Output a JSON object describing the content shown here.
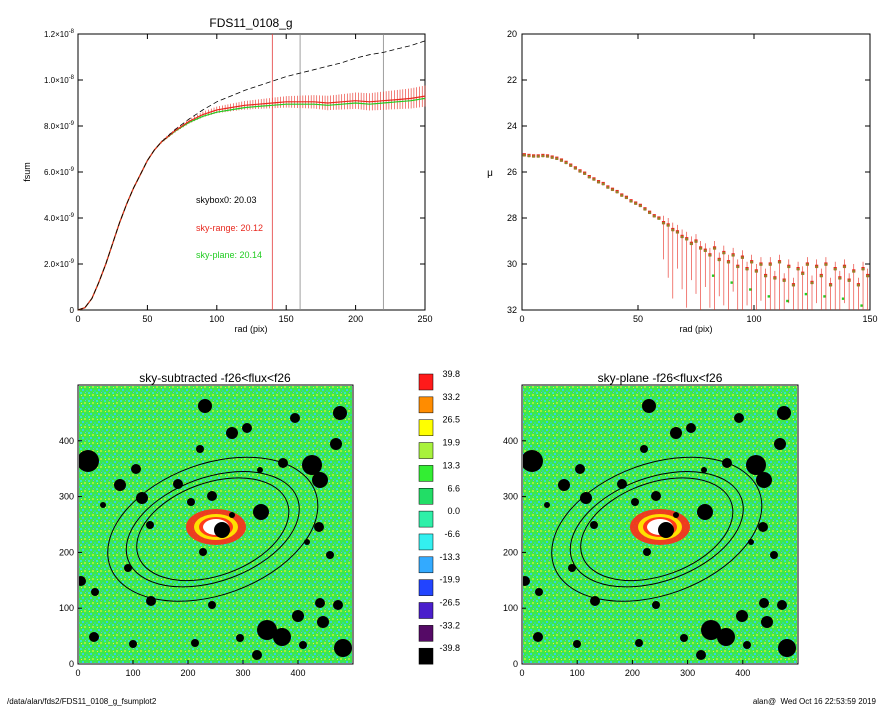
{
  "chart_data": [
    {
      "type": "line",
      "title": "FDS11_0108_g",
      "xlabel": "rad (pix)",
      "ylabel": "fsum",
      "xlim": [
        0,
        250
      ],
      "ylim": [
        0,
        1.2e-08
      ],
      "xticks": [
        "0",
        "50",
        "100",
        "150",
        "200",
        "250"
      ],
      "yticks": [
        {
          "mant": "0",
          "exp": ""
        },
        {
          "mant": "2.0×10",
          "exp": "-9"
        },
        {
          "mant": "4.0×10",
          "exp": "-9"
        },
        {
          "mant": "6.0×10",
          "exp": "-9"
        },
        {
          "mant": "8.0×10",
          "exp": "-9"
        },
        {
          "mant": "1.0×10",
          "exp": "-8"
        },
        {
          "mant": "1.2×10",
          "exp": "-8"
        }
      ],
      "vlines": [
        {
          "x": 140,
          "color": "#e33c3c"
        },
        {
          "x": 160,
          "color": "#888888"
        },
        {
          "x": 220,
          "color": "#888888"
        }
      ],
      "annotations": [
        {
          "text": "skybox0: 20.03",
          "color": "#000000"
        },
        {
          "text": "sky-range: 20.12",
          "color": "#e8281e"
        },
        {
          "text": "sky-plane: 20.14",
          "color": "#22cc22"
        }
      ],
      "series": [
        {
          "style": "dashed",
          "color": "#000000",
          "x": [
            0,
            5,
            10,
            15,
            20,
            25,
            30,
            35,
            40,
            45,
            50,
            55,
            60,
            70,
            80,
            90,
            100,
            110,
            120,
            130,
            140,
            150,
            160,
            170,
            180,
            190,
            200,
            210,
            220,
            230,
            240,
            250
          ],
          "y": [
            0,
            1e-10,
            5e-10,
            1.2e-09,
            2e-09,
            2.9e-09,
            3.8e-09,
            4.6e-09,
            5.3e-09,
            5.9e-09,
            6.5e-09,
            6.95e-09,
            7.3e-09,
            7.85e-09,
            8.3e-09,
            8.7e-09,
            9.05e-09,
            9.3e-09,
            9.55e-09,
            9.75e-09,
            9.95e-09,
            1.015e-08,
            1.03e-08,
            1.045e-08,
            1.06e-08,
            1.075e-08,
            1.095e-08,
            1.11e-08,
            1.12e-08,
            1.135e-08,
            1.15e-08,
            1.17e-08
          ]
        },
        {
          "style": "solid",
          "color": "#e8281e",
          "x": [
            0,
            5,
            10,
            15,
            20,
            25,
            30,
            35,
            40,
            45,
            50,
            55,
            60,
            70,
            80,
            90,
            100,
            110,
            120,
            130,
            140,
            150,
            160,
            170,
            180,
            190,
            200,
            210,
            220,
            230,
            240,
            250
          ],
          "y": [
            0,
            1e-10,
            5e-10,
            1.2e-09,
            2e-09,
            2.9e-09,
            3.8e-09,
            4.6e-09,
            5.3e-09,
            5.9e-09,
            6.5e-09,
            6.95e-09,
            7.3e-09,
            7.8e-09,
            8.2e-09,
            8.5e-09,
            8.7e-09,
            8.8e-09,
            8.9e-09,
            8.95e-09,
            9e-09,
            9.05e-09,
            9.05e-09,
            9.05e-09,
            9e-09,
            9.05e-09,
            9.1e-09,
            9.05e-09,
            9.1e-09,
            9.15e-09,
            9.2e-09,
            9.3e-09
          ]
        },
        {
          "style": "solid",
          "color": "#22cc22",
          "x": [
            0,
            5,
            10,
            15,
            20,
            25,
            30,
            35,
            40,
            45,
            50,
            55,
            60,
            70,
            80,
            90,
            100,
            110,
            120,
            130,
            140,
            150,
            160,
            170,
            180,
            190,
            200,
            210,
            220,
            230,
            240,
            250
          ],
          "y": [
            0,
            1e-10,
            5e-10,
            1.2e-09,
            2e-09,
            2.9e-09,
            3.8e-09,
            4.6e-09,
            5.3e-09,
            5.9e-09,
            6.5e-09,
            6.95e-09,
            7.3e-09,
            7.78e-09,
            8.15e-09,
            8.42e-09,
            8.6e-09,
            8.7e-09,
            8.8e-09,
            8.85e-09,
            8.9e-09,
            8.95e-09,
            8.95e-09,
            8.95e-09,
            8.9e-09,
            8.95e-09,
            9e-09,
            8.95e-09,
            9e-09,
            9.05e-09,
            9.1e-09,
            9.2e-09
          ]
        }
      ]
    },
    {
      "type": "scatter",
      "title": "",
      "xlabel": "rad (pix)",
      "ylabel": "μ",
      "xlim": [
        0,
        150
      ],
      "ylim": [
        32,
        20
      ],
      "xticks": [
        "0",
        "50",
        "100",
        "150"
      ],
      "yticks": [
        "20",
        "22",
        "24",
        "26",
        "28",
        "30",
        "32"
      ],
      "profile_points": [
        [
          1,
          25.25
        ],
        [
          3,
          25.28
        ],
        [
          5,
          25.3
        ],
        [
          7,
          25.3
        ],
        [
          9,
          25.28
        ],
        [
          11,
          25.3
        ],
        [
          13,
          25.35
        ],
        [
          15,
          25.4
        ],
        [
          17,
          25.48
        ],
        [
          19,
          25.58
        ],
        [
          21,
          25.7
        ],
        [
          23,
          25.82
        ],
        [
          25,
          25.95
        ],
        [
          27,
          26.05
        ],
        [
          29,
          26.2
        ],
        [
          31,
          26.3
        ],
        [
          33,
          26.42
        ],
        [
          35,
          26.5
        ],
        [
          37,
          26.65
        ],
        [
          39,
          26.75
        ],
        [
          41,
          26.85
        ],
        [
          43,
          27.0
        ],
        [
          45,
          27.1
        ],
        [
          47,
          27.25
        ],
        [
          49,
          27.35
        ],
        [
          51,
          27.45
        ],
        [
          53,
          27.6
        ],
        [
          55,
          27.75
        ],
        [
          57,
          27.9
        ],
        [
          59,
          28.0
        ],
        [
          61,
          28.2
        ],
        [
          63,
          28.3
        ],
        [
          65,
          28.5
        ],
        [
          67,
          28.6
        ],
        [
          69,
          28.8
        ],
        [
          71,
          28.9
        ],
        [
          73,
          29.1
        ],
        [
          75,
          29.0
        ],
        [
          77,
          29.3
        ],
        [
          79,
          29.4
        ],
        [
          81,
          29.6
        ],
        [
          83,
          29.3
        ],
        [
          85,
          29.8
        ],
        [
          87,
          29.5
        ],
        [
          89,
          29.9
        ],
        [
          91,
          29.6
        ],
        [
          93,
          30.1
        ],
        [
          95,
          29.7
        ],
        [
          97,
          30.2
        ],
        [
          99,
          29.9
        ],
        [
          101,
          30.3
        ],
        [
          103,
          30.0
        ],
        [
          105,
          30.5
        ],
        [
          107,
          30.0
        ],
        [
          109,
          30.6
        ],
        [
          111,
          29.9
        ],
        [
          113,
          30.7
        ],
        [
          115,
          30.1
        ],
        [
          117,
          30.9
        ],
        [
          119,
          30.2
        ],
        [
          121,
          30.4
        ],
        [
          123,
          30.0
        ],
        [
          125,
          30.8
        ],
        [
          127,
          30.1
        ],
        [
          129,
          30.5
        ],
        [
          131,
          30.0
        ],
        [
          133,
          30.9
        ],
        [
          135,
          30.2
        ],
        [
          137,
          30.6
        ],
        [
          139,
          30.1
        ],
        [
          141,
          30.7
        ],
        [
          143,
          30.3
        ],
        [
          145,
          30.9
        ],
        [
          147,
          30.2
        ],
        [
          149,
          30.5
        ]
      ],
      "marker_colors": [
        "#e8281e",
        "#22cc22",
        "#000000"
      ]
    },
    {
      "type": "heatmap",
      "title": "sky-subtracted -f26<flux<f26",
      "xlim": [
        0,
        500
      ],
      "ylim": [
        0,
        500
      ],
      "xticks": [
        "0",
        "100",
        "200",
        "300",
        "400"
      ],
      "yticks": [
        "0",
        "100",
        "200",
        "300",
        "400"
      ],
      "ellipses": [
        {
          "center": [
            245,
            245
          ],
          "a": 200,
          "b": 120,
          "angle": 20
        },
        {
          "center": [
            245,
            245
          ],
          "a": 165,
          "b": 95,
          "angle": 20
        },
        {
          "center": [
            245,
            245
          ],
          "a": 145,
          "b": 85,
          "angle": 20
        }
      ]
    },
    {
      "type": "heatmap",
      "title": "sky-plane -f26<flux<f26",
      "xlim": [
        0,
        500
      ],
      "ylim": [
        0,
        500
      ],
      "xticks": [
        "0",
        "100",
        "200",
        "300",
        "400"
      ],
      "yticks": [
        "0",
        "100",
        "200",
        "300",
        "400"
      ]
    }
  ],
  "colorbar": {
    "labels": [
      "39.8",
      "33.2",
      "26.5",
      "19.9",
      "13.3",
      "6.6",
      "0.0",
      "-6.6",
      "-13.3",
      "-19.9",
      "-26.5",
      "-33.2",
      "-39.8"
    ],
    "colors": [
      "#ff1a1a",
      "#ff8c00",
      "#ffff00",
      "#a8f23c",
      "#33ee33",
      "#22dd66",
      "#2ef0a8",
      "#33f0f0",
      "#33aaff",
      "#2244ff",
      "#4a1ecc",
      "#550a66",
      "#000000"
    ]
  },
  "footer": {
    "left": "/data/alan/fds2/FDS11_0108_g_fsumplot2",
    "right": "alan@  Wed Oct 16 22:53:59 2019"
  }
}
